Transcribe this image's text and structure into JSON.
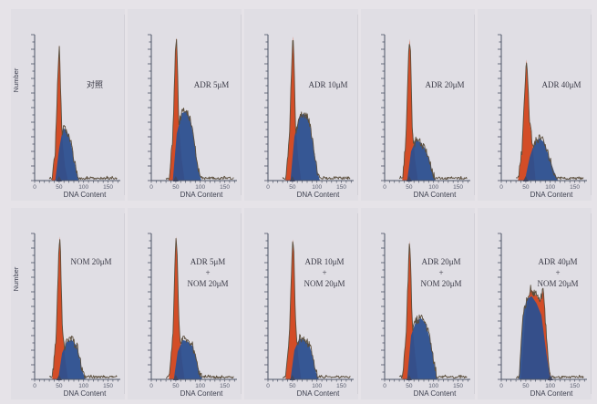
{
  "figure": {
    "colors": {
      "background": "#e6e3e8",
      "axis": "#4d5466",
      "g1_peak": "#d2451c",
      "s_phase": "#2c4f8f",
      "outline": "#5b4e3c"
    }
  },
  "chart_data": [
    {
      "type": "area",
      "panel": "top-1",
      "annotation": [
        "对照"
      ],
      "xlabel": "DNA Content",
      "ylabel": "Number",
      "x_ticks": [
        0,
        50,
        100,
        150
      ],
      "xlim": [
        0,
        175
      ],
      "ylim": [
        0,
        10
      ],
      "marker": "triangle at x≈50",
      "series": [
        {
          "role": "G1 peak",
          "color": "#d2451c",
          "x": [
            35,
            42,
            48,
            50,
            52,
            56,
            62,
            68
          ],
          "y": [
            0,
            2,
            7.5,
            9.3,
            7.5,
            3,
            1,
            0
          ]
        },
        {
          "role": "S/G2 distribution",
          "color": "#2c4f8f",
          "x": [
            42,
            50,
            58,
            66,
            74,
            80,
            86,
            90
          ],
          "y": [
            0,
            2.2,
            3.6,
            3.4,
            2.6,
            1.5,
            0.5,
            0
          ]
        }
      ]
    },
    {
      "type": "area",
      "panel": "top-2",
      "annotation": [
        "ADR 5μM"
      ],
      "xlabel": "DNA Content",
      "ylabel": "",
      "x_ticks": [
        0,
        50,
        100,
        150
      ],
      "xlim": [
        0,
        175
      ],
      "ylim": [
        0,
        10
      ],
      "marker": "triangle at x≈50",
      "series": [
        {
          "role": "G1 peak",
          "color": "#d2451c",
          "x": [
            36,
            44,
            49,
            51,
            53,
            56,
            62,
            68
          ],
          "y": [
            0,
            3,
            8.5,
            9.8,
            8.5,
            4,
            1.5,
            0
          ]
        },
        {
          "role": "S/G2 distribution",
          "color": "#2c4f8f",
          "x": [
            44,
            52,
            62,
            72,
            80,
            88,
            96,
            102
          ],
          "y": [
            0,
            3.2,
            4.6,
            4.8,
            4.2,
            2.6,
            0.8,
            0
          ]
        }
      ]
    },
    {
      "type": "area",
      "panel": "top-3",
      "annotation": [
        "ADR 10μM"
      ],
      "xlabel": "DNA Content",
      "ylabel": "",
      "x_ticks": [
        0,
        50,
        100,
        150
      ],
      "xlim": [
        0,
        175
      ],
      "ylim": [
        0,
        10
      ],
      "marker": "triangle at x≈50",
      "series": [
        {
          "role": "G1 peak",
          "color": "#d2451c",
          "x": [
            36,
            44,
            49,
            51,
            53,
            56,
            62,
            68
          ],
          "y": [
            0,
            3,
            8.5,
            9.9,
            8.5,
            4,
            1.5,
            0
          ]
        },
        {
          "role": "S/G2 distribution",
          "color": "#2c4f8f",
          "x": [
            46,
            54,
            64,
            74,
            84,
            92,
            100,
            106
          ],
          "y": [
            0,
            3,
            4.4,
            4.6,
            4.1,
            2.6,
            0.8,
            0
          ]
        }
      ]
    },
    {
      "type": "area",
      "panel": "top-4",
      "annotation": [
        "ADR 20μM"
      ],
      "xlabel": "DNA Content",
      "ylabel": "",
      "x_ticks": [
        0,
        50,
        100,
        150
      ],
      "xlim": [
        0,
        175
      ],
      "ylim": [
        0,
        10
      ],
      "marker": "triangle at x≈50",
      "series": [
        {
          "role": "G1 peak",
          "color": "#d2451c",
          "x": [
            36,
            44,
            49,
            51,
            53,
            56,
            62,
            68
          ],
          "y": [
            0,
            3,
            8.5,
            9.7,
            8.5,
            4,
            1.5,
            0
          ]
        },
        {
          "role": "S/G2 distribution",
          "color": "#2c4f8f",
          "x": [
            46,
            54,
            64,
            74,
            84,
            92,
            98,
            104
          ],
          "y": [
            0,
            2,
            2.8,
            2.6,
            2.1,
            1.4,
            0.5,
            0
          ]
        }
      ]
    },
    {
      "type": "area",
      "panel": "top-5",
      "annotation": [
        "ADR 40μM"
      ],
      "xlabel": "DNA Content",
      "ylabel": "",
      "x_ticks": [
        0,
        50,
        100,
        150
      ],
      "xlim": [
        0,
        175
      ],
      "ylim": [
        0,
        10
      ],
      "marker": "triangle at x≈50",
      "series": [
        {
          "role": "G1 peak",
          "color": "#d2451c",
          "x": [
            34,
            42,
            48,
            51,
            54,
            58,
            64,
            70
          ],
          "y": [
            0,
            2,
            6,
            8.3,
            7,
            4,
            2.4,
            0
          ]
        },
        {
          "role": "S/G2 distribution",
          "color": "#2c4f8f",
          "x": [
            48,
            58,
            68,
            78,
            88,
            98,
            108,
            116
          ],
          "y": [
            0,
            1.6,
            2.6,
            2.9,
            2.6,
            1.6,
            0.6,
            0
          ]
        }
      ]
    },
    {
      "type": "area",
      "panel": "bottom-1",
      "annotation": [
        "NOM 20μM"
      ],
      "xlabel": "DNA Content",
      "ylabel": "Number",
      "x_ticks": [
        0,
        50,
        100,
        150
      ],
      "xlim": [
        0,
        175
      ],
      "ylim": [
        0,
        10
      ],
      "marker": "triangle at x≈50",
      "series": [
        {
          "role": "G1 peak",
          "color": "#d2451c",
          "x": [
            36,
            44,
            49,
            51,
            53,
            56,
            62,
            68
          ],
          "y": [
            0,
            3,
            8.5,
            9.8,
            8.5,
            4,
            1.5,
            0
          ]
        },
        {
          "role": "S/G2 distribution",
          "color": "#2c4f8f",
          "x": [
            48,
            56,
            66,
            76,
            86,
            92,
            98,
            104
          ],
          "y": [
            0,
            1.8,
            2.6,
            2.7,
            2.3,
            1.5,
            0.5,
            0
          ]
        }
      ]
    },
    {
      "type": "area",
      "panel": "bottom-2",
      "annotation": [
        "ADR 5μM",
        "+",
        "NOM 20μM"
      ],
      "xlabel": "DNA Content",
      "ylabel": "",
      "x_ticks": [
        0,
        50,
        100,
        150
      ],
      "xlim": [
        0,
        175
      ],
      "ylim": [
        0,
        10
      ],
      "marker": "triangle at x≈50",
      "series": [
        {
          "role": "G1 peak",
          "color": "#d2451c",
          "x": [
            36,
            44,
            49,
            51,
            53,
            56,
            62,
            68
          ],
          "y": [
            0,
            3,
            8.5,
            9.8,
            8.5,
            4,
            1.5,
            0
          ]
        },
        {
          "role": "S/G2 distribution",
          "color": "#2c4f8f",
          "x": [
            46,
            54,
            64,
            74,
            84,
            92,
            98,
            104
          ],
          "y": [
            0,
            1.9,
            2.7,
            2.6,
            2.3,
            1.5,
            0.5,
            0
          ]
        }
      ]
    },
    {
      "type": "area",
      "panel": "bottom-3",
      "annotation": [
        "ADR 10μM",
        "+",
        "NOM 20μM"
      ],
      "xlabel": "DNA Content",
      "ylabel": "",
      "x_ticks": [
        0,
        50,
        100,
        150
      ],
      "xlim": [
        0,
        175
      ],
      "ylim": [
        0,
        10
      ],
      "marker": "triangle at x≈50",
      "series": [
        {
          "role": "G1 peak",
          "color": "#d2451c",
          "x": [
            36,
            44,
            49,
            51,
            53,
            56,
            62,
            68
          ],
          "y": [
            0,
            3,
            8.5,
            9.6,
            8.5,
            4,
            1.5,
            0
          ]
        },
        {
          "role": "S/G2 distribution",
          "color": "#2c4f8f",
          "x": [
            46,
            54,
            64,
            74,
            84,
            92,
            98,
            104
          ],
          "y": [
            0,
            2,
            2.8,
            2.7,
            2.4,
            1.5,
            0.5,
            0
          ]
        }
      ]
    },
    {
      "type": "area",
      "panel": "bottom-4",
      "annotation": [
        "ADR 20μM",
        "+",
        "NOM 20μM"
      ],
      "xlabel": "DNA Content",
      "ylabel": "",
      "x_ticks": [
        0,
        50,
        100,
        150
      ],
      "xlim": [
        0,
        175
      ],
      "ylim": [
        0,
        10
      ],
      "marker": "triangle at x≈50",
      "series": [
        {
          "role": "G1 peak",
          "color": "#d2451c",
          "x": [
            36,
            44,
            49,
            51,
            53,
            56,
            62,
            68
          ],
          "y": [
            0,
            3,
            8,
            9.5,
            8,
            4,
            1.8,
            0
          ]
        },
        {
          "role": "S/G2 distribution",
          "color": "#2c4f8f",
          "x": [
            46,
            54,
            64,
            74,
            84,
            94,
            102,
            108
          ],
          "y": [
            0,
            3,
            4,
            4.2,
            3.8,
            2.6,
            0.9,
            0
          ]
        }
      ]
    },
    {
      "type": "area",
      "panel": "bottom-5",
      "annotation": [
        "ADR 40μM",
        "+",
        "NOM 20μM"
      ],
      "xlabel": "DNA Content",
      "ylabel": "",
      "x_ticks": [
        0,
        50,
        100,
        150
      ],
      "xlim": [
        0,
        175
      ],
      "ylim": [
        0,
        10
      ],
      "marker": "triangle at x≈100",
      "series": [
        {
          "role": "G1 peak",
          "color": "#d2451c",
          "x": [
            40,
            50,
            60,
            70,
            80,
            86,
            92,
            100
          ],
          "y": [
            0,
            4.6,
            6.2,
            5.8,
            5.4,
            6.2,
            3,
            0
          ]
        },
        {
          "role": "S/G2 distribution",
          "color": "#2c4f8f",
          "x": [
            36,
            44,
            52,
            62,
            72,
            82,
            92,
            100
          ],
          "y": [
            0,
            4.4,
            5.5,
            5.7,
            5.2,
            4.4,
            1.8,
            0
          ]
        }
      ]
    }
  ]
}
